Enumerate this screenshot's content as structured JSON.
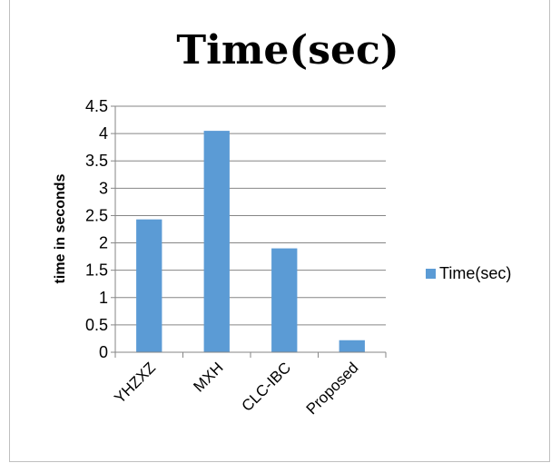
{
  "chart_data": {
    "type": "bar",
    "title": "Time(sec)",
    "xlabel": "",
    "ylabel": "time in seconds",
    "categories": [
      "YHZXZ",
      "MXH",
      "CLC-IBC",
      "Proposed"
    ],
    "series": [
      {
        "name": "Time(sec)",
        "values": [
          2.43,
          4.05,
          1.9,
          0.22
        ],
        "color": "#5b9bd5"
      }
    ],
    "ylim": [
      0,
      4.5
    ],
    "yticks": [
      "0",
      "0.5",
      "1",
      "1.5",
      "2",
      "2.5",
      "3",
      "3.5",
      "4",
      "4.5"
    ],
    "grid": true,
    "legend": "right"
  }
}
